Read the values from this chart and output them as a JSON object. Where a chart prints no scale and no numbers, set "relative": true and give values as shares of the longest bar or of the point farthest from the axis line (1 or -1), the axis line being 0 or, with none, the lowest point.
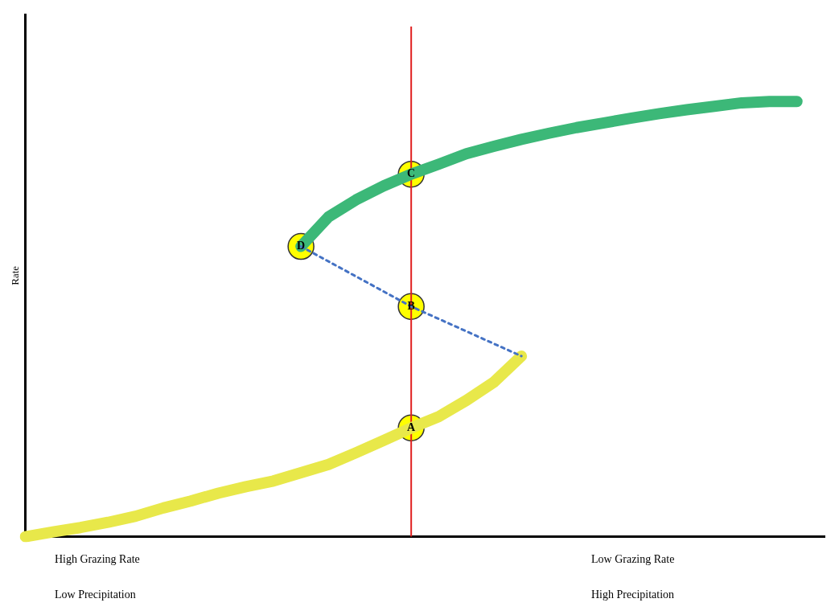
{
  "chart_data": {
    "type": "line",
    "relative": true,
    "ylabel": "Rate",
    "grid": false,
    "legend": false,
    "categories": [
      null,
      null,
      null,
      null,
      null,
      null,
      null,
      null,
      null,
      null,
      null,
      null,
      null,
      null,
      null,
      null,
      null,
      null,
      null,
      null,
      null,
      null,
      null,
      null,
      null,
      null,
      null,
      null,
      null,
      null
    ],
    "series": [
      {
        "color": "#e8e84a",
        "line_style": "solid",
        "values": [
          0,
          0.011,
          0.021,
          0.033,
          0.047,
          0.066,
          0.082,
          0.1,
          0.115,
          0.128,
          0.147,
          0.166,
          0.193,
          0.221,
          0.25,
          0.276,
          0.313,
          0.355,
          0.415,
          null,
          null,
          null,
          null,
          null,
          null,
          null,
          null,
          null,
          null,
          null
        ]
      },
      {
        "color": "#4472c4",
        "line_style": "dashed",
        "values": [
          null,
          null,
          null,
          null,
          null,
          null,
          null,
          null,
          null,
          null,
          0.667,
          null,
          null,
          null,
          0.529,
          null,
          null,
          null,
          0.415,
          null,
          null,
          null,
          null,
          null,
          null,
          null,
          null,
          null,
          null,
          null
        ]
      },
      {
        "color": "#3cb878",
        "line_style": "solid",
        "values": [
          null,
          null,
          null,
          null,
          null,
          null,
          null,
          null,
          null,
          null,
          0.667,
          0.735,
          0.774,
          0.806,
          0.833,
          0.856,
          0.88,
          0.897,
          0.913,
          0.927,
          0.94,
          0.951,
          0.962,
          0.972,
          0.981,
          0.989,
          0.997,
          1,
          1,
          null
        ]
      }
    ],
    "annotations": [
      {
        "text": "A",
        "y": 0.25
      },
      {
        "text": "B",
        "y": 0.529
      },
      {
        "text": "C",
        "y": 0.833
      },
      {
        "text": "D",
        "y": 0.667
      },
      "High Grazing Rate",
      "Low Grazing Rate",
      "Low Precipitation",
      "High Precipitation"
    ]
  }
}
